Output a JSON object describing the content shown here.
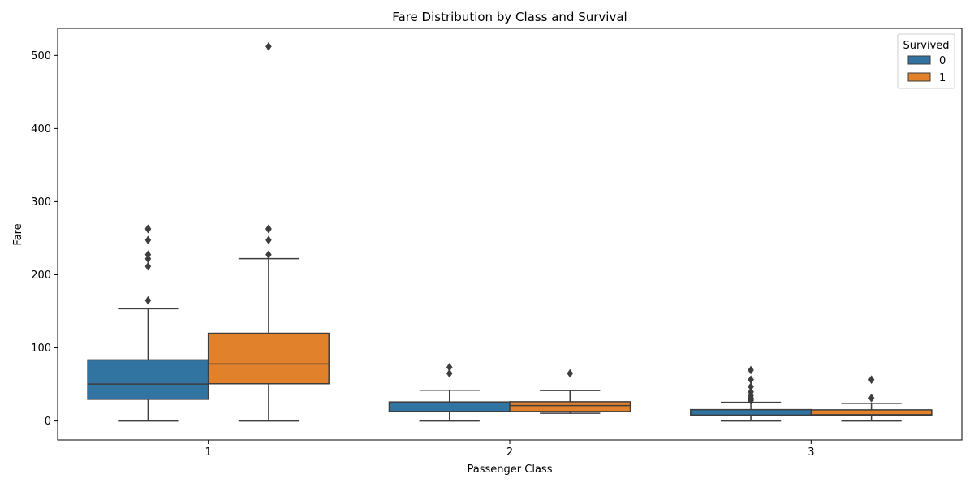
{
  "chart_data": {
    "type": "box",
    "title": "Fare Distribution by Class and Survival",
    "xlabel": "Passenger Class",
    "ylabel": "Fare",
    "categories": [
      "1",
      "2",
      "3"
    ],
    "ylim": [
      -26,
      537
    ],
    "yticks": [
      0,
      100,
      200,
      300,
      400,
      500
    ],
    "legend": {
      "title": "Survived",
      "position": "top-right"
    },
    "series": [
      {
        "name": "0",
        "color": "#3274a1",
        "boxes": [
          {
            "category": "1",
            "whisker_low": 0,
            "q1": 29.7,
            "median": 50.5,
            "q3": 83.5,
            "whisker_high": 153.5,
            "outliers": [
              164.9,
              211.5,
              221.8,
              227.5,
              247.5,
              262.4,
              263
            ]
          },
          {
            "category": "2",
            "whisker_low": 0,
            "q1": 13,
            "median": 13,
            "q3": 26,
            "whisker_high": 42,
            "outliers": [
              65,
              73.5
            ]
          },
          {
            "category": "3",
            "whisker_low": 0,
            "q1": 7.75,
            "median": 8.05,
            "q3": 15.5,
            "whisker_high": 25.5,
            "outliers": [
              27.9,
              29.1,
              31.3,
              34.4,
              39.7,
              46.9,
              56.5,
              69.55
            ]
          }
        ]
      },
      {
        "name": "1",
        "color": "#e1812c",
        "boxes": [
          {
            "category": "1",
            "whisker_low": 0,
            "q1": 50.9,
            "median": 77.9,
            "q3": 120,
            "whisker_high": 222,
            "outliers": [
              227.5,
              247.5,
              262.4,
              263,
              512.3
            ]
          },
          {
            "category": "2",
            "whisker_low": 10.5,
            "q1": 13,
            "median": 21,
            "q3": 26.3,
            "whisker_high": 41.6,
            "outliers": [
              65
            ]
          },
          {
            "category": "3",
            "whisker_low": 0,
            "q1": 7.8,
            "median": 8.5,
            "q3": 15.2,
            "whisker_high": 24.1,
            "outliers": [
              31.3,
              56.5
            ]
          }
        ]
      }
    ]
  }
}
